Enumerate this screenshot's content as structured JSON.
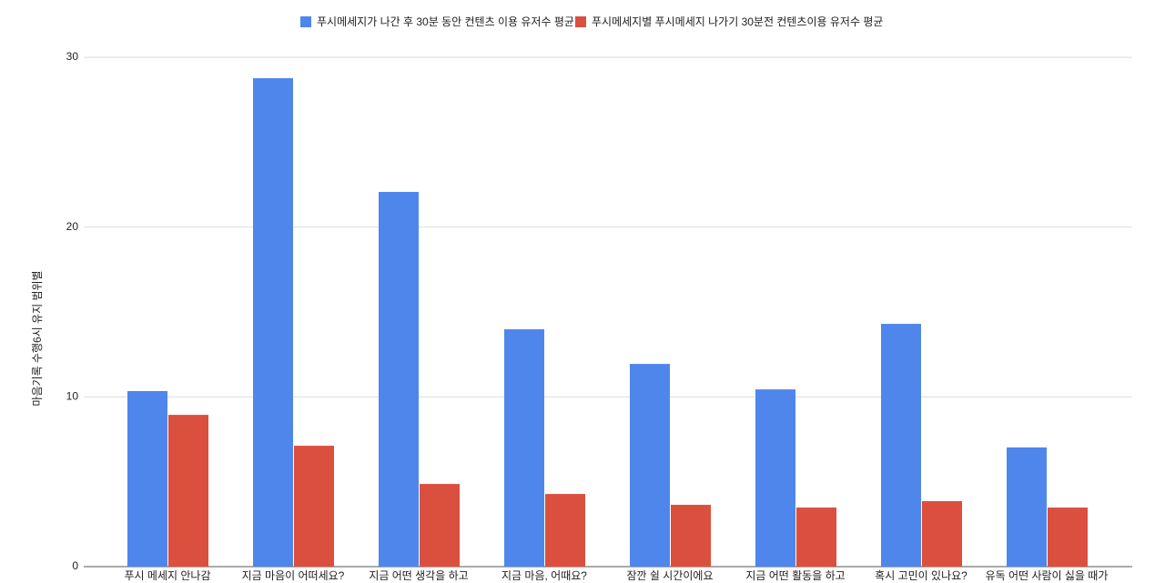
{
  "chart_data": {
    "type": "bar",
    "y_label": "마음기록 수행6시  유지 범위별",
    "categories": [
      "푸시 메세지 안나감",
      "지금 마음이 어떠세요?",
      "지금 어떤 생각을 하고",
      "지금 마음, 어때요?",
      "잠깐 쉴 시간이에요",
      "지금 어떤 활동을 하고",
      "혹시 고민이 있나요?",
      "유독 어떤 사람이 싫을 때가"
    ],
    "series": [
      {
        "name": "푸시메세지가 나간 후 30분 동안 컨텐츠 이용 유저수 평균",
        "color": "#4f86ec",
        "values": [
          10.34,
          28.77,
          22.07,
          13.98,
          11.94,
          10.44,
          14.3,
          7.02
        ]
      },
      {
        "name": "푸시메세지별 푸시메세지 나가기 30분전 컨텐츠이용 유저수 평균",
        "color": "#db4f3f",
        "values": [
          8.94,
          7.12,
          4.87,
          4.28,
          3.64,
          3.48,
          3.86,
          3.48
        ]
      }
    ],
    "ylim": [
      0,
      30
    ],
    "yticks": [
      0,
      10,
      20,
      30
    ],
    "grid": true,
    "legend": "top"
  }
}
